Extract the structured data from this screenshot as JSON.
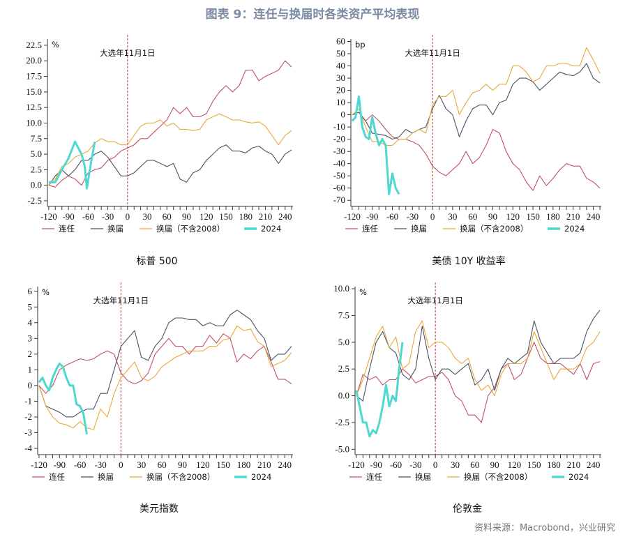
{
  "title": "图表 9：连任与换届时各类资产平均表现",
  "source": "资料来源：Macrobond，兴业研究",
  "annotation": "大选年11月1日",
  "colors": {
    "连任": "#c0506a",
    "换届": "#4a5068",
    "换届（不含2008）": "#e8a838",
    "2024": "#4fd8d0",
    "event_line": "#c0392b"
  },
  "legend": [
    "连任",
    "换届",
    "换届（不含2008）",
    "2024"
  ],
  "chart_data": [
    {
      "type": "line",
      "title": "标普 500",
      "unit": "%",
      "xlim": [
        -122,
        252
      ],
      "ylim": [
        -3.4,
        23.5
      ],
      "yticks": [
        -2.5,
        0.0,
        2.5,
        5.0,
        7.5,
        10.0,
        12.5,
        15.0,
        17.5,
        20.0,
        22.5
      ],
      "ytick_decimals": 1,
      "xticks": [
        -120,
        -90,
        -60,
        -30,
        0,
        30,
        60,
        90,
        120,
        150,
        180,
        210,
        240
      ],
      "x": [
        -120,
        -110,
        -100,
        -90,
        -80,
        -70,
        -60,
        -50,
        -40,
        -30,
        -20,
        -10,
        0,
        10,
        20,
        30,
        40,
        50,
        60,
        70,
        80,
        90,
        100,
        110,
        120,
        130,
        140,
        150,
        160,
        170,
        180,
        190,
        200,
        210,
        220,
        230,
        240,
        250
      ],
      "series": [
        {
          "name": "连任",
          "values": [
            0,
            -0.3,
            0.8,
            1.5,
            1,
            0,
            2,
            2.5,
            2.8,
            4,
            4.5,
            5.5,
            6,
            6.5,
            7.5,
            7.5,
            8.5,
            9.5,
            10.5,
            12.5,
            11.5,
            12.5,
            11,
            11,
            11.5,
            13.5,
            15,
            16,
            15,
            16,
            18.5,
            18.5,
            16.8,
            17.5,
            18,
            18.5,
            20,
            19
          ]
        },
        {
          "name": "换届",
          "values": [
            0,
            1.5,
            2.5,
            1.5,
            2.5,
            4,
            4,
            5,
            5.5,
            4.5,
            3,
            1.5,
            1.5,
            2,
            3,
            4,
            4,
            3.5,
            3,
            3.5,
            1,
            0.5,
            2,
            2.5,
            4,
            5,
            6,
            6.5,
            5.5,
            5.5,
            5.2,
            6,
            6.3,
            5.5,
            5,
            3.5,
            5,
            5.7
          ]
        },
        {
          "name": "换届（不含2008）",
          "values": [
            0,
            1,
            3,
            3.5,
            4.5,
            5,
            5.5,
            6.8,
            7.5,
            7,
            7,
            6.5,
            6.5,
            8,
            9.5,
            10,
            10,
            10.5,
            9.5,
            10,
            9,
            9,
            8.8,
            9,
            10.5,
            11,
            11.5,
            11,
            10.5,
            10.5,
            10.2,
            10,
            10.2,
            9.5,
            8,
            6.5,
            8,
            8.8
          ]
        },
        {
          "name": "2024",
          "x": [
            -120,
            -110,
            -100,
            -90,
            -80,
            -70,
            -65,
            -62,
            -55,
            -50
          ],
          "values": [
            0.5,
            0.5,
            2.5,
            4.3,
            7,
            5,
            3,
            -0.5,
            4,
            7
          ]
        }
      ]
    },
    {
      "type": "line",
      "title": "美债 10Y 收益率",
      "unit": "bp",
      "xlim": [
        -122,
        252
      ],
      "ylim": [
        -75,
        62
      ],
      "yticks": [
        -70,
        -60,
        -50,
        -40,
        -30,
        -20,
        -10,
        0,
        10,
        20,
        30,
        40,
        50,
        60
      ],
      "ytick_decimals": 0,
      "xticks": [
        -120,
        -90,
        -60,
        -30,
        0,
        30,
        60,
        90,
        120,
        150,
        180,
        210,
        240
      ],
      "x": [
        -120,
        -110,
        -100,
        -90,
        -80,
        -70,
        -60,
        -50,
        -40,
        -30,
        -20,
        -10,
        0,
        10,
        20,
        30,
        40,
        50,
        60,
        70,
        80,
        90,
        100,
        110,
        120,
        130,
        140,
        150,
        160,
        170,
        180,
        190,
        200,
        210,
        220,
        230,
        240,
        250
      ],
      "series": [
        {
          "name": "连任",
          "values": [
            0,
            2,
            -5,
            0,
            -5,
            -12,
            -18,
            -20,
            -20,
            -22,
            -25,
            -32,
            -42,
            -47,
            -50,
            -45,
            -40,
            -30,
            -40,
            -35,
            -25,
            -12,
            -15,
            -30,
            -40,
            -45,
            -55,
            -62,
            -50,
            -58,
            -52,
            -45,
            -40,
            -42,
            -42,
            -52,
            -55,
            -60
          ]
        },
        {
          "name": "换届",
          "values": [
            0,
            2,
            -5,
            -15,
            -16,
            -17,
            -20,
            -18,
            -12,
            -15,
            -12,
            -10,
            5,
            16,
            5,
            0,
            -18,
            -5,
            5,
            8,
            8,
            0,
            10,
            12,
            25,
            30,
            30,
            27,
            20,
            25,
            30,
            35,
            33,
            32,
            35,
            42,
            30,
            26
          ]
        },
        {
          "name": "换届（不含2008）",
          "values": [
            0,
            5,
            -10,
            -22,
            -22,
            -25,
            -25,
            -20,
            -20,
            -15,
            -12,
            -15,
            8,
            15,
            15,
            20,
            0,
            10,
            18,
            20,
            25,
            20,
            25,
            25,
            40,
            40,
            35,
            27,
            30,
            40,
            40,
            42,
            42,
            40,
            40,
            55,
            45,
            34
          ]
        },
        {
          "name": "2024",
          "x": [
            -120,
            -115,
            -110,
            -105,
            -100,
            -95,
            -90,
            -85,
            -80,
            -75,
            -70,
            -65,
            -60,
            -55,
            -50
          ],
          "values": [
            -5,
            -2,
            15,
            -10,
            -18,
            -20,
            -2,
            -15,
            -25,
            -20,
            -25,
            -65,
            -48,
            -60,
            -65
          ]
        }
      ]
    },
    {
      "type": "line",
      "title": "美元指数",
      "unit": "%",
      "xlim": [
        -122,
        252
      ],
      "ylim": [
        -4.4,
        6.3
      ],
      "yticks": [
        -4,
        -3,
        -2,
        -1,
        0,
        1,
        2,
        3,
        4,
        5,
        6
      ],
      "ytick_decimals": 0,
      "xticks": [
        -120,
        -90,
        -60,
        -30,
        0,
        30,
        60,
        90,
        120,
        150,
        180,
        210,
        240
      ],
      "x": [
        -120,
        -110,
        -100,
        -90,
        -80,
        -70,
        -60,
        -50,
        -40,
        -30,
        -20,
        -10,
        0,
        10,
        20,
        30,
        40,
        50,
        60,
        70,
        80,
        90,
        100,
        110,
        120,
        130,
        140,
        150,
        160,
        170,
        180,
        190,
        200,
        210,
        220,
        230,
        240,
        250
      ],
      "series": [
        {
          "name": "连任",
          "values": [
            0,
            -0.5,
            0,
            1,
            1.3,
            1.5,
            1.7,
            1.6,
            1.7,
            2,
            2.2,
            2,
            0.8,
            0.3,
            0.1,
            0.3,
            0.8,
            2,
            2.5,
            3,
            2.5,
            2.5,
            2,
            2.5,
            2.5,
            3.2,
            2.7,
            3.3,
            3,
            1.5,
            2,
            1.7,
            2.2,
            2.5,
            1.5,
            0.4,
            0.4,
            0.1
          ]
        },
        {
          "name": "换届",
          "values": [
            0,
            -1.3,
            -1.5,
            -1.7,
            -2,
            -2,
            -1.7,
            -1.5,
            -1.5,
            -0.5,
            -0.5,
            1,
            2.5,
            3,
            3.5,
            1.8,
            1.6,
            2.5,
            3,
            4,
            4.3,
            4.3,
            4.2,
            4.2,
            3.8,
            4,
            3.8,
            3.8,
            4.5,
            4.8,
            4.5,
            4.2,
            3.5,
            3,
            1.6,
            2,
            2,
            2.5
          ]
        },
        {
          "name": "换届（不含2008）",
          "values": [
            0,
            -1.3,
            -2,
            -2.4,
            -2.5,
            -2.7,
            -2.3,
            -2.7,
            -2.8,
            -1.5,
            -2,
            -0.5,
            0.5,
            1,
            1.5,
            0.5,
            0.3,
            0.6,
            1.2,
            1.5,
            1.8,
            2,
            2.2,
            2.2,
            2.2,
            2.5,
            2.5,
            2.9,
            3,
            3.8,
            3.5,
            3.6,
            2.8,
            2.5,
            1.2,
            1.4,
            1.6,
            2.1
          ]
        },
        {
          "name": "2024",
          "x": [
            -120,
            -115,
            -110,
            -105,
            -100,
            -95,
            -90,
            -85,
            -80,
            -75,
            -70,
            -65,
            -60,
            -55,
            -50
          ],
          "values": [
            0.2,
            0.5,
            0,
            -0.3,
            0.5,
            1,
            1.4,
            1.2,
            0.5,
            0,
            0,
            -1.2,
            -1.3,
            -1.8,
            -3.1
          ]
        }
      ]
    },
    {
      "type": "line",
      "title": "伦敦金",
      "unit": "%",
      "xlim": [
        -122,
        252
      ],
      "ylim": [
        -5.5,
        10.2
      ],
      "yticks": [
        -5.0,
        -2.5,
        0.0,
        2.5,
        5.0,
        7.5,
        10.0
      ],
      "ytick_decimals": 1,
      "xticks": [
        -120,
        -90,
        -60,
        -30,
        0,
        30,
        60,
        90,
        120,
        150,
        180,
        210,
        240
      ],
      "x": [
        -120,
        -110,
        -100,
        -90,
        -80,
        -70,
        -60,
        -50,
        -40,
        -30,
        -20,
        -10,
        0,
        10,
        20,
        30,
        40,
        50,
        60,
        70,
        80,
        90,
        100,
        110,
        120,
        130,
        140,
        150,
        160,
        170,
        180,
        190,
        200,
        210,
        220,
        230,
        240,
        250
      ],
      "series": [
        {
          "name": "连任",
          "values": [
            0,
            2,
            1.5,
            1.8,
            1,
            1.5,
            1.5,
            2.5,
            2,
            1.2,
            1.5,
            1.8,
            1.8,
            2.2,
            1.5,
            0,
            -0.5,
            -1.8,
            -1.8,
            -2.5,
            0,
            0.8,
            2.5,
            3,
            1.5,
            2,
            3.5,
            5,
            3.5,
            3,
            3,
            3,
            2.5,
            2,
            3,
            1.5,
            3,
            3.2
          ]
        },
        {
          "name": "换届",
          "values": [
            0,
            -0.5,
            2.5,
            5,
            6,
            4.5,
            4,
            2,
            1.5,
            2.5,
            6.5,
            3.5,
            1.5,
            2.5,
            2.5,
            2,
            2.5,
            3,
            1,
            1.5,
            2.5,
            0.5,
            2.5,
            3.5,
            3,
            3.5,
            4,
            7,
            5,
            4,
            3,
            3.5,
            3.5,
            3.5,
            4,
            6,
            7.2,
            8
          ]
        },
        {
          "name": "换届（不含2008）",
          "values": [
            0,
            1.5,
            3.5,
            5.5,
            6.5,
            4.5,
            5.5,
            2.5,
            3,
            6,
            7,
            4.5,
            5,
            5,
            4.5,
            3.5,
            3,
            3.5,
            1.5,
            0.5,
            1,
            0,
            2,
            3,
            3,
            3,
            3.5,
            6,
            4.5,
            3,
            1.5,
            2.5,
            2.5,
            2.5,
            3,
            4.5,
            5,
            6
          ]
        },
        {
          "name": "2024",
          "x": [
            -120,
            -115,
            -110,
            -105,
            -100,
            -95,
            -90,
            -85,
            -80,
            -75,
            -70,
            -65,
            -60,
            -55,
            -50
          ],
          "values": [
            0.5,
            -1,
            -2.5,
            -2.5,
            -3.8,
            -3.2,
            -3.5,
            -2.5,
            -1,
            1,
            -1,
            0,
            -0.5,
            2.5,
            5
          ]
        }
      ]
    }
  ]
}
